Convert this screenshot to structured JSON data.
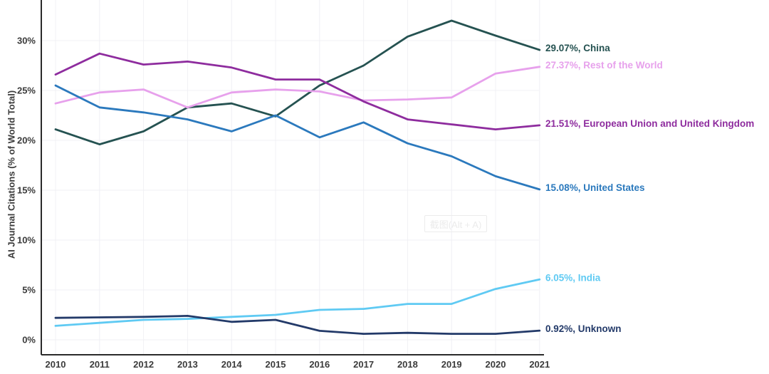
{
  "figure": {
    "watermark": "截图(Alt + A)"
  },
  "chart_data": {
    "type": "line",
    "title": "",
    "xlabel": "",
    "ylabel": "AI Journal Citations (% of World Total)",
    "ylim": [
      0,
      34
    ],
    "grid": true,
    "legend_position": "right-end-labels",
    "x": [
      2010,
      2011,
      2012,
      2013,
      2014,
      2015,
      2016,
      2017,
      2018,
      2019,
      2020,
      2021
    ],
    "y_ticks": [
      "0%",
      "5%",
      "10%",
      "15%",
      "20%",
      "25%",
      "30%"
    ],
    "y_tick_values": [
      0,
      5,
      10,
      15,
      20,
      25,
      30
    ],
    "axis_color": "#2a2a2a",
    "grid_color": "#f0f0f4",
    "tick_text_color": "#3b3b3b",
    "series": [
      {
        "id": "china",
        "name": "China",
        "end_label": "29.07%, China",
        "color": "#255251",
        "values": [
          21.1,
          19.6,
          20.9,
          23.3,
          23.7,
          22.4,
          25.5,
          27.5,
          30.4,
          32.0,
          30.5,
          29.07
        ]
      },
      {
        "id": "rest-of-the-world",
        "name": "Rest of the World",
        "end_label": "27.37%, Rest of the World",
        "color": "#e7a1ec",
        "values": [
          23.7,
          24.8,
          25.1,
          23.3,
          24.8,
          25.1,
          24.9,
          24.0,
          24.1,
          24.3,
          26.7,
          27.37
        ]
      },
      {
        "id": "eu-and-uk",
        "name": "European Union and United Kingdom",
        "end_label": "21.51%, European Union and United Kingdom",
        "color": "#8e2c9e",
        "values": [
          26.6,
          28.7,
          27.6,
          27.9,
          27.3,
          26.1,
          26.1,
          23.9,
          22.1,
          21.6,
          21.1,
          21.51
        ]
      },
      {
        "id": "united-states",
        "name": "United States",
        "end_label": "15.08%, United States",
        "color": "#2b79bd",
        "values": [
          25.5,
          23.3,
          22.8,
          22.1,
          20.9,
          22.5,
          20.3,
          21.8,
          19.7,
          18.4,
          16.4,
          15.08
        ]
      },
      {
        "id": "india",
        "name": "India",
        "end_label": "6.05%, India",
        "color": "#5fcaf3",
        "values": [
          1.4,
          1.7,
          2.0,
          2.1,
          2.3,
          2.5,
          3.0,
          3.1,
          3.6,
          3.6,
          5.1,
          6.05
        ]
      },
      {
        "id": "unknown",
        "name": "Unknown",
        "end_label": "0.92%, Unknown",
        "color": "#233a69",
        "values": [
          2.2,
          2.25,
          2.3,
          2.4,
          1.8,
          2.0,
          0.9,
          0.6,
          0.7,
          0.6,
          0.6,
          0.92
        ]
      }
    ]
  }
}
